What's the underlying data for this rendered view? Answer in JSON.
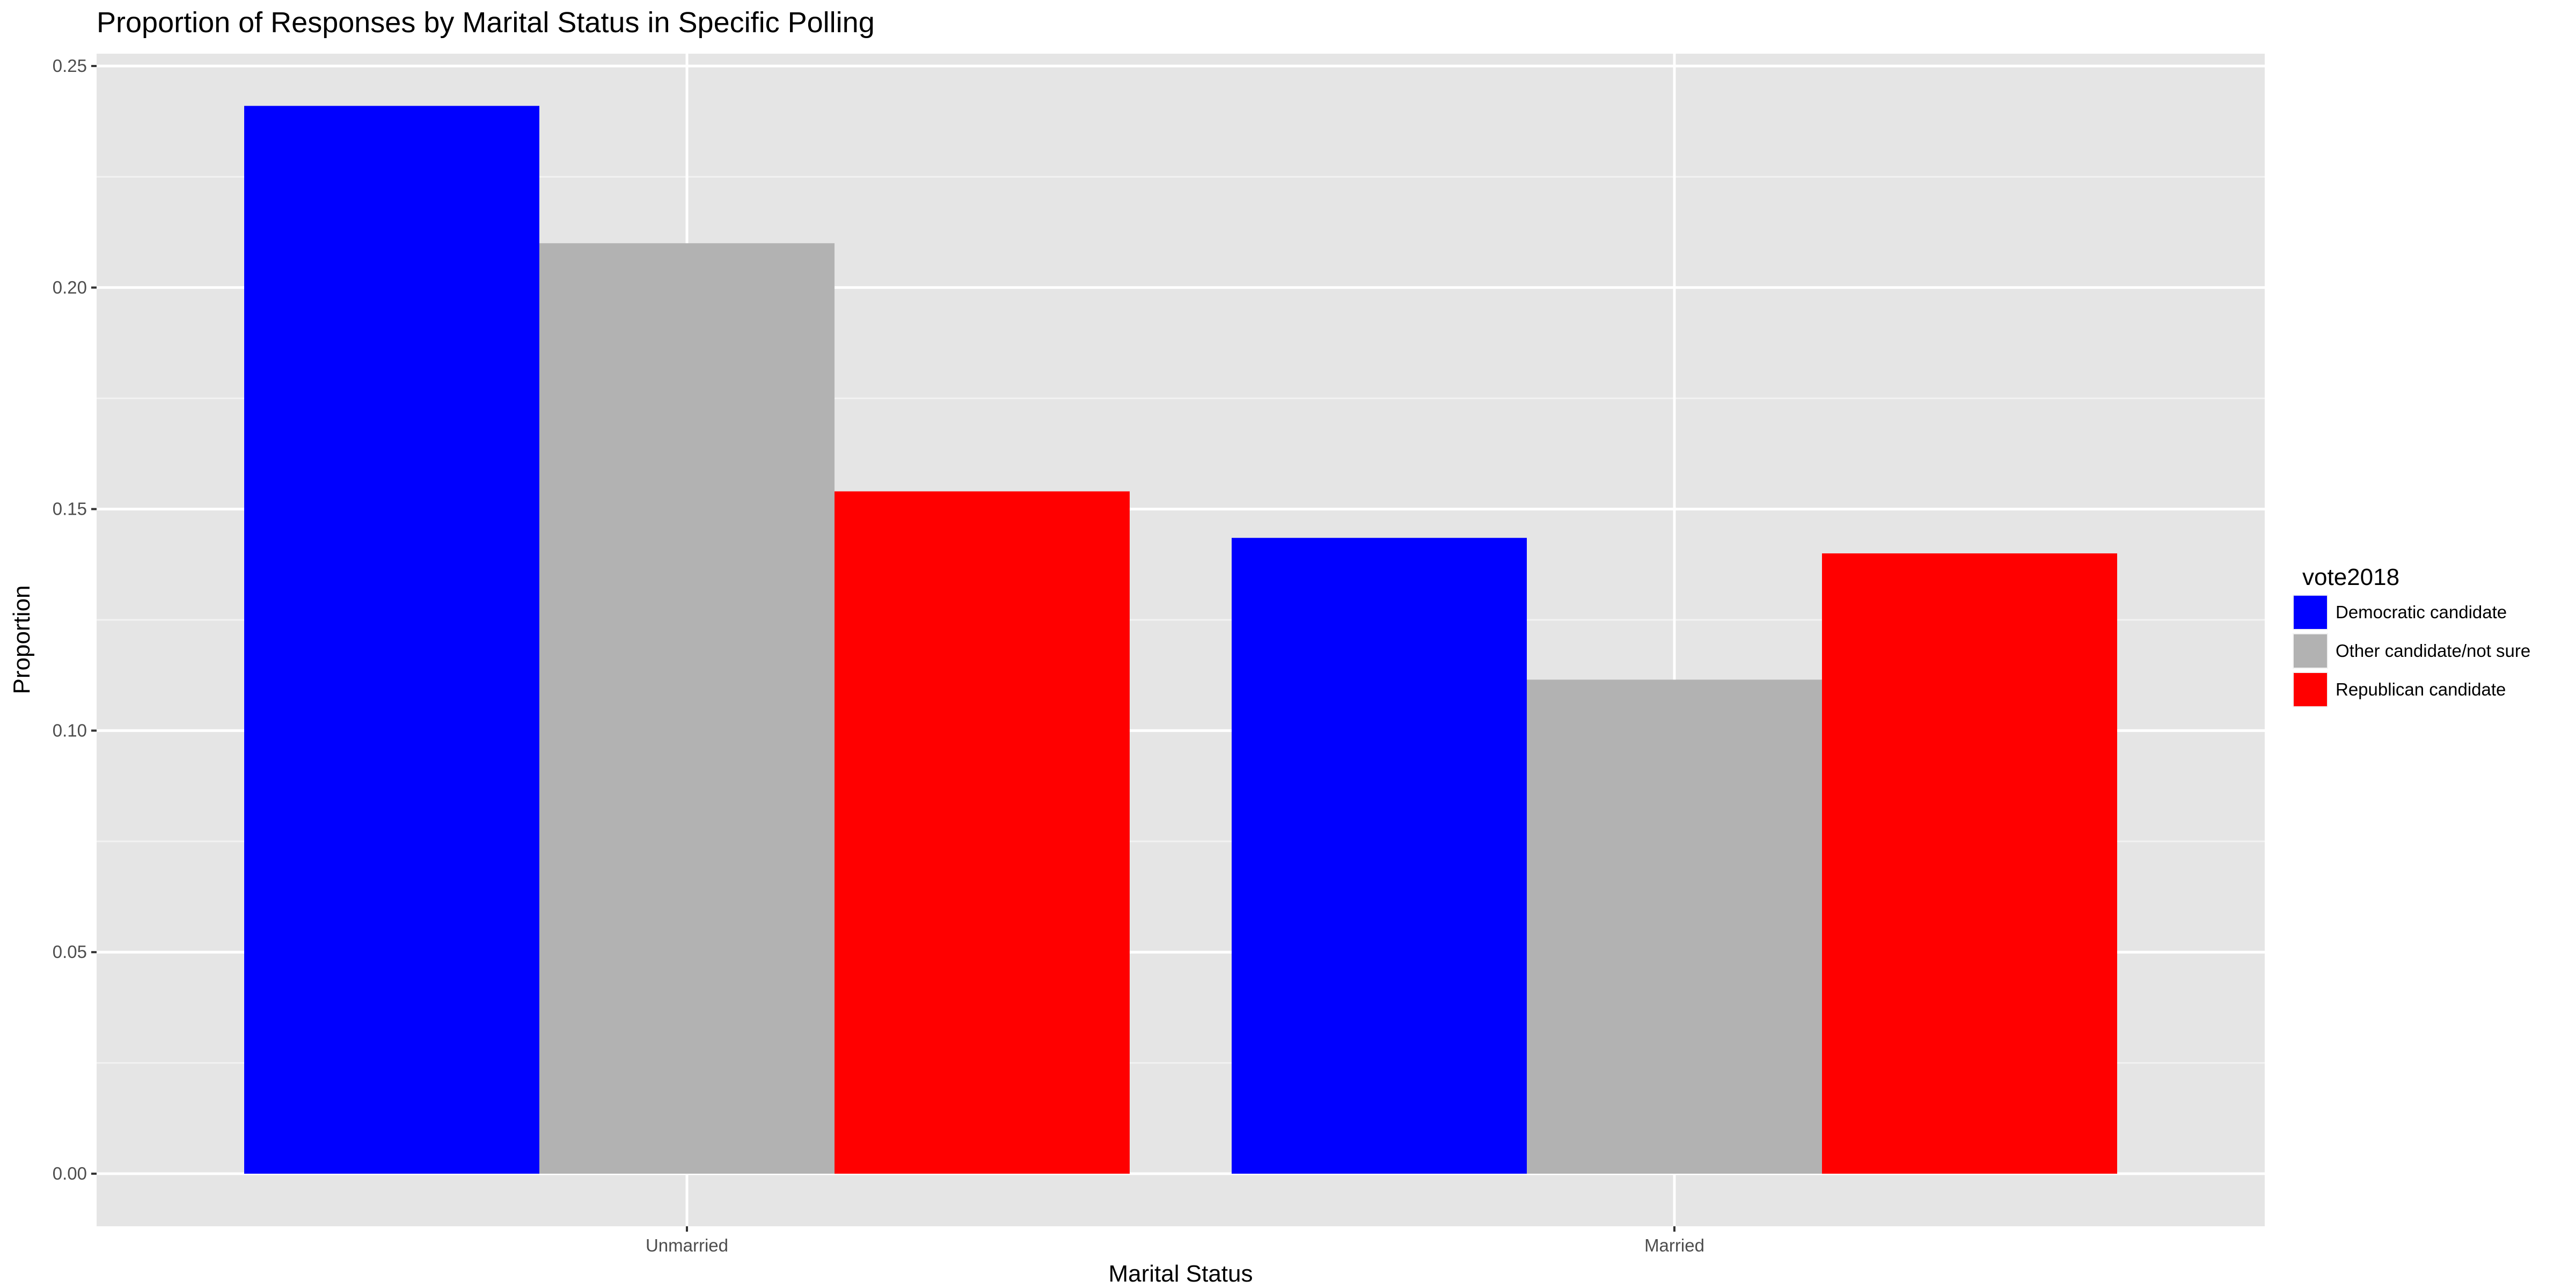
{
  "chart_data": {
    "type": "bar",
    "title": "Proportion of Responses by Marital Status in Specific Polling",
    "xlabel": "Marital Status",
    "ylabel": "Proportion",
    "categories": [
      "Unmarried",
      "Married"
    ],
    "ylim": [
      0,
      0.25
    ],
    "yticks": [
      "0.00",
      "0.05",
      "0.10",
      "0.15",
      "0.20",
      "0.25"
    ],
    "grid": true,
    "legend": {
      "title": "vote2018",
      "placement": "right"
    },
    "series": [
      {
        "name": "Democratic candidate",
        "color": "#0000ff",
        "values": [
          0.241,
          0.1435
        ]
      },
      {
        "name": "Other candidate/not sure",
        "color": "#b2b2b2",
        "values": [
          0.21,
          0.1115
        ]
      },
      {
        "name": "Republican candidate",
        "color": "#ff0000",
        "values": [
          0.154,
          0.14
        ]
      }
    ]
  }
}
